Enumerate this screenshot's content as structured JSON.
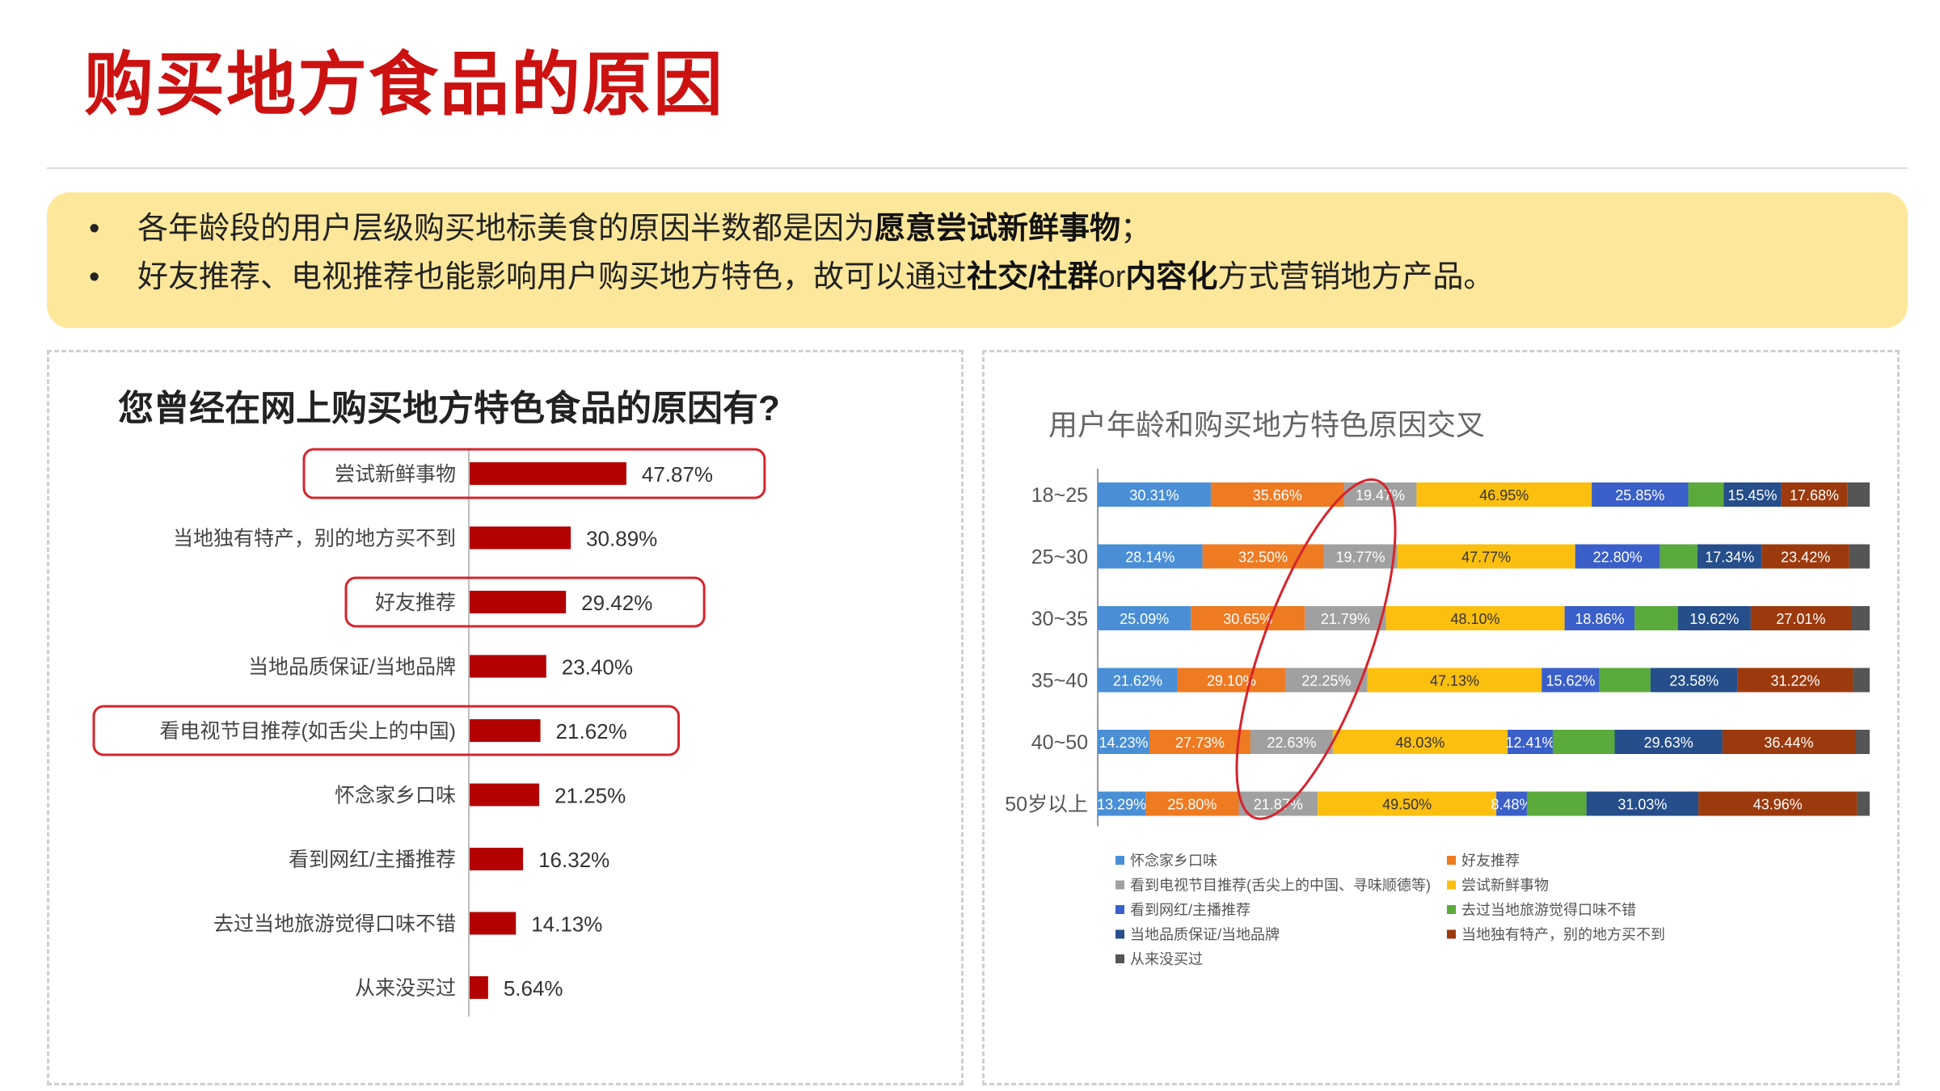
{
  "page": {
    "title": "购买地方食品的原因",
    "bullets": [
      {
        "marker": "•",
        "text_before": "各年龄段的用户层级购买地标美食的原因半数都是因为",
        "bold1": "愿意尝试新鲜事物",
        "text_mid": "；",
        "bold2": "",
        "text_after": ""
      },
      {
        "marker": "•",
        "text_before": "好友推荐、电视推荐也能影响用户购买地方特色，故可以通过",
        "bold1": "社交/社群",
        "text_mid": "or",
        "bold2": "内容化",
        "text_after": "方式营销地方产品。"
      }
    ]
  },
  "chart_data": [
    {
      "type": "bar",
      "orientation": "horizontal",
      "title": "您曾经在网上购买地方特色食品的原因有?",
      "categories": [
        "尝试新鲜事物",
        "当地独有特产，别的地方买不到",
        "好友推荐",
        "当地品质保证/当地品牌",
        "看电视节目推荐(如舌尖上的中国)",
        "怀念家乡口味",
        "看到网红/主播推荐",
        "去过当地旅游觉得口味不错",
        "从来没买过"
      ],
      "values": [
        47.87,
        30.89,
        29.42,
        23.4,
        21.62,
        21.25,
        16.32,
        14.13,
        5.64
      ],
      "value_labels": [
        "47.87%",
        "30.89%",
        "29.42%",
        "23.40%",
        "21.62%",
        "21.25%",
        "16.32%",
        "14.13%",
        "5.64%"
      ],
      "highlighted": [
        "尝试新鲜事物",
        "好友推荐",
        "看电视节目推荐(如舌尖上的中国)"
      ],
      "bar_color": "#b30000",
      "highlight_color": "#d6242c",
      "unit": "%"
    },
    {
      "type": "bar",
      "orientation": "horizontal",
      "stacked": "normalized",
      "title": "用户年龄和购买地方特色原因交叉",
      "categories": [
        "18~25",
        "25~30",
        "30~35",
        "35~40",
        "40~50",
        "50岁以上"
      ],
      "series": [
        {
          "name": "怀念家乡口味",
          "color": "#4a8fd6",
          "values": [
            30.31,
            28.14,
            25.09,
            21.62,
            14.23,
            13.29
          ],
          "labels": [
            "30.31%",
            "28.14%",
            "25.09%",
            "21.62%",
            "14.23%",
            "13.29%"
          ]
        },
        {
          "name": "好友推荐",
          "color": "#ee7a22",
          "values": [
            35.66,
            32.5,
            30.65,
            29.1,
            27.73,
            25.8
          ],
          "labels": [
            "35.66%",
            "32.50%",
            "30.65%",
            "29.10%",
            "27.73%",
            "25.80%"
          ]
        },
        {
          "name": "看到电视节目推荐(舌尖上的中国、寻味顺德等)",
          "color": "#a0a0a0",
          "values": [
            19.47,
            19.77,
            21.79,
            22.25,
            22.63,
            21.87
          ],
          "labels": [
            "19.47%",
            "19.77%",
            "21.79%",
            "22.25%",
            "22.63%",
            "21.87%"
          ]
        },
        {
          "name": "尝试新鲜事物",
          "color": "#fbbf10",
          "values": [
            46.95,
            47.77,
            48.1,
            47.13,
            48.03,
            49.5
          ],
          "labels": [
            "46.95%",
            "47.77%",
            "48.10%",
            "47.13%",
            "48.03%",
            "49.50%"
          ]
        },
        {
          "name": "看到网红/主播推荐",
          "color": "#3a5fc8",
          "values": [
            25.85,
            22.8,
            18.86,
            15.62,
            12.41,
            8.48
          ],
          "labels": [
            "25.85%",
            "22.80%",
            "18.86%",
            "15.62%",
            "12.41%",
            "8.48%"
          ]
        },
        {
          "name": "去过当地旅游觉得口味不错",
          "color": "#5aaa3c",
          "values": [
            9.5,
            10.0,
            11.6,
            13.8,
            17.0,
            16.5
          ],
          "labels": [
            "",
            "",
            "",
            "",
            "",
            ""
          ]
        },
        {
          "name": "当地品质保证/当地品牌",
          "color": "#254e8a",
          "values": [
            15.45,
            17.34,
            19.62,
            23.58,
            29.63,
            31.03
          ],
          "labels": [
            "15.45%",
            "17.34%",
            "19.62%",
            "23.58%",
            "29.63%",
            "31.03%"
          ]
        },
        {
          "name": "当地独有特产，别的地方买不到",
          "color": "#9c3a0d",
          "values": [
            17.68,
            23.42,
            27.01,
            31.22,
            36.44,
            43.96
          ],
          "labels": [
            "17.68%",
            "23.42%",
            "27.01%",
            "31.22%",
            "36.44%",
            "43.96%"
          ]
        },
        {
          "name": "从来没买过",
          "color": "#555555",
          "values": [
            6.0,
            5.5,
            5.0,
            4.5,
            4.0,
            3.5
          ],
          "labels": [
            "",
            "",
            "",
            "",
            "",
            ""
          ]
        }
      ],
      "legend_position": "bottom",
      "highlight": "尝试新鲜事物",
      "highlight_color": "#d6242c"
    }
  ]
}
